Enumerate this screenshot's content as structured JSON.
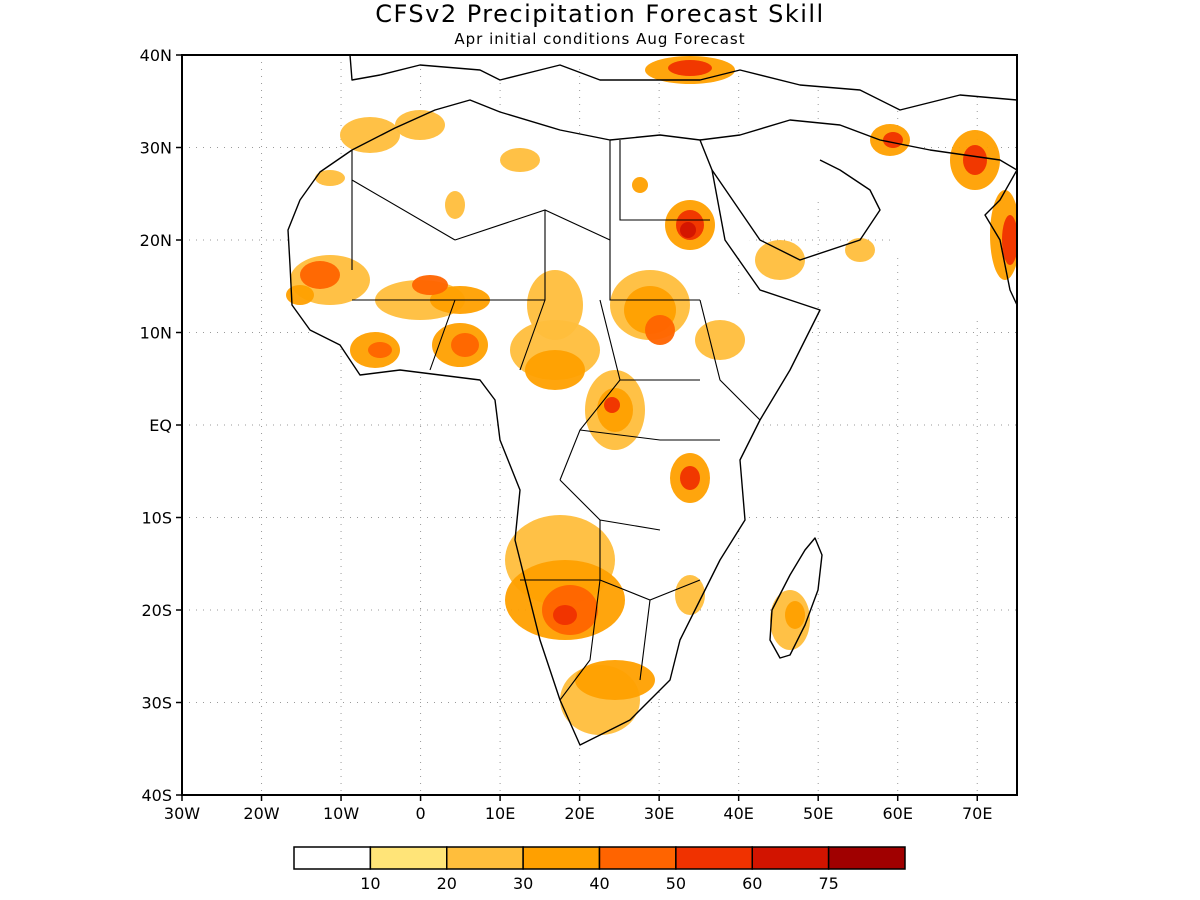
{
  "title": "CFSv2 Precipitation Forecast Skill",
  "subtitle": "Apr initial conditions  Aug Forecast",
  "lat_ticks": [
    "40N",
    "30N",
    "20N",
    "10N",
    "EQ",
    "10S",
    "20S",
    "30S",
    "40S"
  ],
  "lon_ticks": [
    "30W",
    "20W",
    "10W",
    "0",
    "10E",
    "20E",
    "30E",
    "40E",
    "50E",
    "60E",
    "70E"
  ],
  "colorbar": {
    "labels": [
      "10",
      "20",
      "30",
      "40",
      "50",
      "60",
      "75"
    ],
    "colors": [
      "#ffffff",
      "#ffe478",
      "#ffbe3c",
      "#ffa000",
      "#ff6400",
      "#f03200",
      "#d21400",
      "#a00000"
    ]
  },
  "map": {
    "region": "Africa",
    "lon_range": [
      -30,
      75
    ],
    "lat_range": [
      -40,
      40
    ],
    "fill_color": "#ffffff",
    "outline_color": "#000000"
  }
}
